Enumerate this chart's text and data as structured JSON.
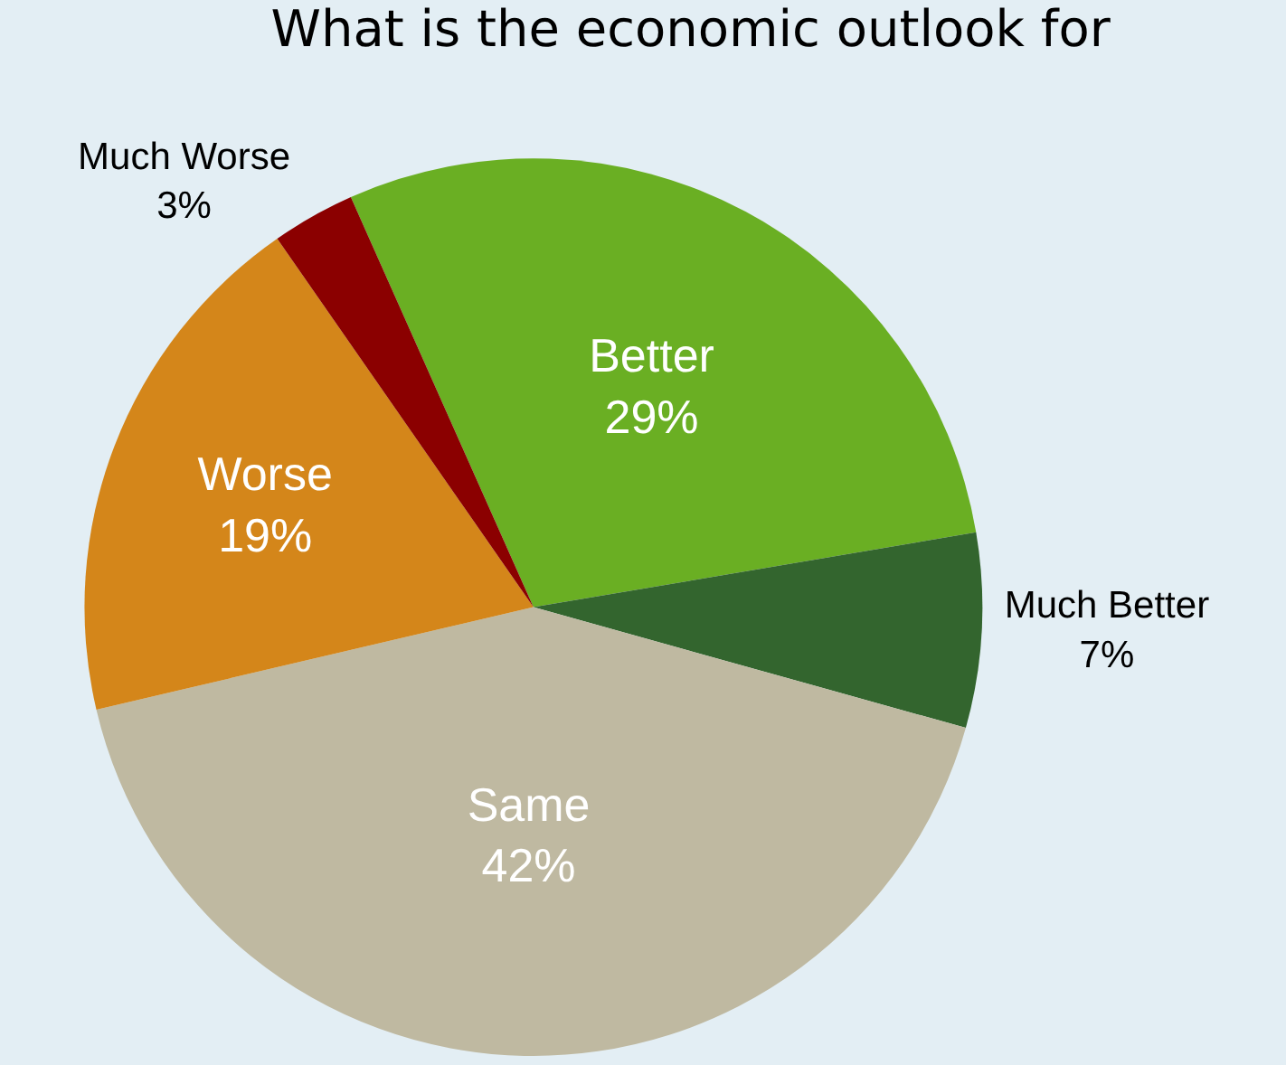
{
  "chart_data": {
    "type": "pie",
    "title": "What is the economic outlook for",
    "categories": [
      "Better",
      "Much Better",
      "Same",
      "Worse",
      "Much Worse"
    ],
    "values": [
      29,
      7,
      42,
      19,
      3
    ],
    "value_labels": [
      "29%",
      "7%",
      "42%",
      "19%",
      "3%"
    ],
    "colors": [
      "#6aaf23",
      "#33652e",
      "#bfb9a1",
      "#d4861a",
      "#8b0000"
    ],
    "legend": false
  }
}
